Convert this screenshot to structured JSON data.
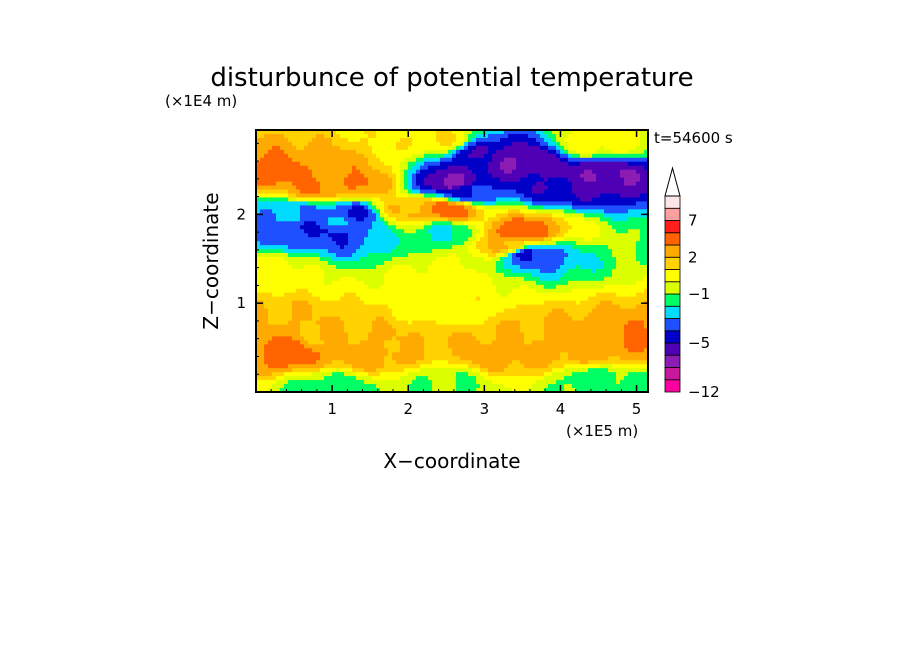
{
  "chart_data": {
    "type": "heatmap",
    "title": "disturbunce of potential temperature",
    "xlabel": "X−coordinate",
    "ylabel": "Z−coordinate",
    "x_unit": "(×1E5 m)",
    "y_unit": "(×1E4 m)",
    "time_label": "t=54600 s",
    "xlim": [
      0,
      5.15
    ],
    "ylim": [
      0,
      2.95
    ],
    "x_ticks": [
      {
        "value": 1,
        "label": "1"
      },
      {
        "value": 2,
        "label": "2"
      },
      {
        "value": 3,
        "label": "3"
      },
      {
        "value": 4,
        "label": "4"
      },
      {
        "value": 5,
        "label": "5"
      }
    ],
    "y_ticks": [
      {
        "value": 1,
        "label": "1"
      },
      {
        "value": 2,
        "label": "2"
      }
    ],
    "colorbar": {
      "levels": [
        -12,
        -10,
        -8,
        -6,
        -5,
        -4,
        -3,
        -2,
        -1,
        0,
        1,
        2,
        3,
        5,
        7,
        9,
        11
      ],
      "colors": [
        "#ff00a0",
        "#c8189e",
        "#8c1cb4",
        "#5000b4",
        "#0000c8",
        "#1e50ff",
        "#00dcff",
        "#00ff64",
        "#dcff00",
        "#ffff00",
        "#ffd200",
        "#ffaa00",
        "#ff6400",
        "#ff1e1e",
        "#ffa0a0"
      ],
      "over_color": "#ffe6e6",
      "labels": [
        {
          "value": -12,
          "label": "−12"
        },
        {
          "value": -5,
          "label": "−5"
        },
        {
          "value": -1,
          "label": "−1"
        },
        {
          "value": 2,
          "label": "2"
        },
        {
          "value": 7,
          "label": "7"
        }
      ]
    },
    "field_features": [
      {
        "x": 0.3,
        "z": 2.45,
        "value": 3.5
      },
      {
        "x": 0.75,
        "z": 2.3,
        "value": 3
      },
      {
        "x": 1.0,
        "z": 2.5,
        "value": 2.5
      },
      {
        "x": 1.35,
        "z": 2.35,
        "value": 3
      },
      {
        "x": 0.6,
        "z": 1.85,
        "value": -4
      },
      {
        "x": 1.0,
        "z": 1.8,
        "value": -4
      },
      {
        "x": 1.25,
        "z": 2.0,
        "value": -4
      },
      {
        "x": 0.2,
        "z": 2.0,
        "value": -3
      },
      {
        "x": 0.55,
        "z": 2.0,
        "value": -3
      },
      {
        "x": 1.05,
        "z": 1.9,
        "value": -3
      },
      {
        "x": 2.3,
        "z": 2.85,
        "value": 1
      },
      {
        "x": 3.45,
        "z": 2.6,
        "value": -6
      },
      {
        "x": 3.05,
        "z": 2.65,
        "value": -5
      },
      {
        "x": 4.0,
        "z": 2.35,
        "value": -5
      },
      {
        "x": 4.5,
        "z": 2.45,
        "value": -6
      },
      {
        "x": 2.55,
        "z": 2.35,
        "value": -6
      },
      {
        "x": 2.75,
        "z": 2.25,
        "value": -4
      },
      {
        "x": 2.5,
        "z": 2.05,
        "value": 3.5
      },
      {
        "x": 2.0,
        "z": 2.05,
        "value": 2
      },
      {
        "x": 3.45,
        "z": 1.8,
        "value": 3.5
      },
      {
        "x": 3.3,
        "z": 1.65,
        "value": 2
      },
      {
        "x": 3.6,
        "z": 1.55,
        "value": -4
      },
      {
        "x": 2.5,
        "z": 1.8,
        "value": -2
      },
      {
        "x": 4.5,
        "z": 2.8,
        "value": 0.5
      },
      {
        "x": 0.2,
        "z": 1.35,
        "value": 0.5
      },
      {
        "x": 2.5,
        "z": 1.25,
        "value": 0.5
      },
      {
        "x": 2.5,
        "z": 0.95,
        "value": 0.5
      },
      {
        "x": 1.0,
        "z": 0.6,
        "value": 2
      },
      {
        "x": 2.0,
        "z": 0.55,
        "value": 2
      },
      {
        "x": 3.5,
        "z": 0.6,
        "value": 2
      },
      {
        "x": 0.45,
        "z": 0.45,
        "value": 3.5
      },
      {
        "x": 1.5,
        "z": 0.42,
        "value": 2.5
      },
      {
        "x": 3.2,
        "z": 0.42,
        "value": 2.5
      },
      {
        "x": 4.2,
        "z": 0.5,
        "value": 2.5
      },
      {
        "x": 4.9,
        "z": 0.6,
        "value": 3
      },
      {
        "x": 0.1,
        "z": 0.85,
        "value": 2
      },
      {
        "x": 2.5,
        "z": 0.1,
        "value": -1
      },
      {
        "x": 1.0,
        "z": 0.05,
        "value": -1.5
      },
      {
        "x": 4.5,
        "z": 0.1,
        "value": -1.5
      }
    ]
  }
}
